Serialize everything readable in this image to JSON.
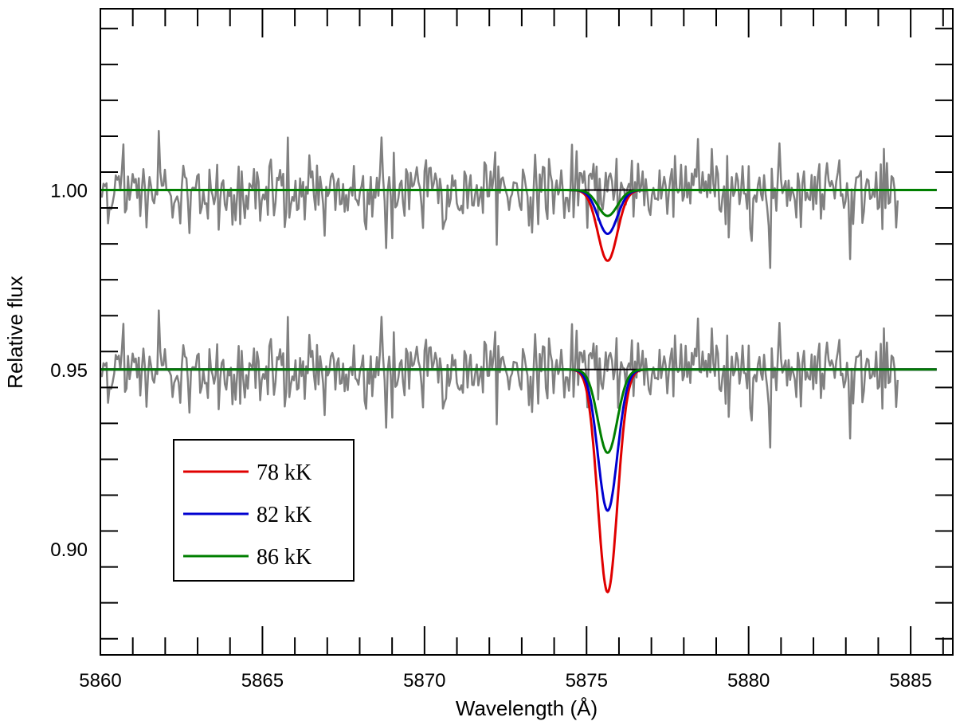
{
  "chart_data": {
    "type": "line",
    "xlabel": "Wavelength (Å)",
    "ylabel": "Relative flux",
    "xlim": [
      5860,
      5886.3
    ],
    "ylim": [
      0.8705,
      1.0505
    ],
    "xticks": [
      5860,
      5865,
      5870,
      5875,
      5880,
      5885
    ],
    "xtick_labels": [
      "5860",
      "5865",
      "5870",
      "5875",
      "5880",
      "5885"
    ],
    "yticks": [
      0.9,
      0.95,
      1.0
    ],
    "ytick_labels": [
      "0.90",
      "0.95",
      "1.00"
    ],
    "grid": false,
    "legend": {
      "position": "lower-left",
      "entries": [
        "78 kK",
        "82 kK",
        "86 kK"
      ]
    },
    "observed": {
      "color": "#808080",
      "x_range": [
        5860.0,
        5884.6
      ],
      "offsets": [
        1.0,
        0.95
      ],
      "noise_sigma": 0.0045
    },
    "line_center": 5875.65,
    "line_sigma": 0.3,
    "model_x_range": [
      5860.0,
      5885.8
    ],
    "series": [
      {
        "name": "78 kK",
        "color": "#e00000",
        "depth_upper": 0.0197,
        "depth_lower": 0.062
      },
      {
        "name": "82 kK",
        "color": "#0000d0",
        "depth_upper": 0.0122,
        "depth_lower": 0.0393
      },
      {
        "name": "86 kK",
        "color": "#007f00",
        "depth_upper": 0.0072,
        "depth_lower": 0.0232
      }
    ]
  }
}
